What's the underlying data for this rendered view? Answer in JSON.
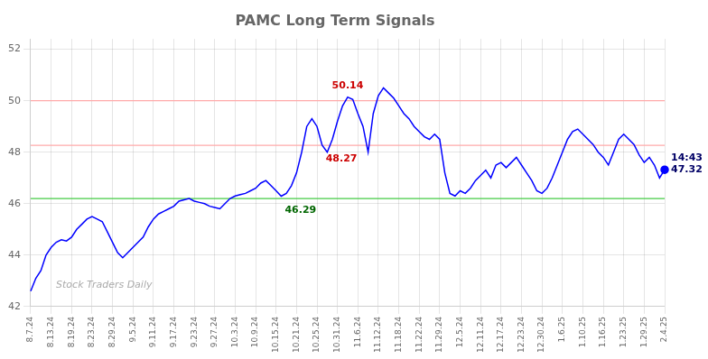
{
  "chart_data": {
    "type": "line",
    "title": "PAMC Long Term Signals",
    "categories": [
      "8.7.24",
      null,
      null,
      null,
      "8.13.24",
      null,
      null,
      null,
      "8.19.24",
      null,
      null,
      null,
      "8.23.24",
      null,
      null,
      null,
      "8.29.24",
      null,
      null,
      null,
      "9.5.24",
      null,
      null,
      null,
      "9.11.24",
      null,
      null,
      null,
      "9.17.24",
      null,
      null,
      null,
      "9.23.24",
      null,
      null,
      null,
      "9.27.24",
      null,
      null,
      null,
      "10.3.24",
      null,
      null,
      null,
      "10.9.24",
      null,
      null,
      null,
      "10.15.24",
      null,
      null,
      null,
      "10.21.24",
      null,
      null,
      null,
      "10.25.24",
      null,
      null,
      null,
      "10.31.24",
      null,
      null,
      null,
      "11.6.24",
      null,
      null,
      null,
      "11.12.24",
      null,
      null,
      null,
      "11.18.24",
      null,
      null,
      null,
      "11.22.24",
      null,
      null,
      null,
      "11.29.24",
      null,
      null,
      null,
      "12.5.24",
      null,
      null,
      null,
      "12.11.24",
      null,
      null,
      null,
      "12.17.24",
      null,
      null,
      null,
      "12.23.24",
      null,
      null,
      null,
      "12.30.24",
      null,
      null,
      null,
      "1.6.25",
      null,
      null,
      null,
      "1.10.25",
      null,
      null,
      null,
      "1.16.25",
      null,
      null,
      null,
      "1.23.25",
      null,
      null,
      null,
      "1.29.25",
      null,
      null,
      null,
      "2.4.25"
    ],
    "values": [
      42.6,
      43.1,
      43.4,
      44.0,
      44.3,
      44.5,
      44.6,
      44.55,
      44.7,
      45.0,
      45.2,
      45.4,
      45.5,
      45.4,
      45.3,
      44.9,
      44.5,
      44.1,
      43.9,
      44.1,
      44.3,
      44.5,
      44.7,
      45.1,
      45.4,
      45.6,
      45.7,
      45.8,
      45.9,
      46.1,
      46.15,
      46.2,
      46.1,
      46.05,
      46.0,
      45.9,
      45.85,
      45.8,
      46.0,
      46.2,
      46.3,
      46.35,
      46.4,
      46.5,
      46.6,
      46.8,
      46.9,
      46.7,
      46.5,
      46.29,
      46.4,
      46.7,
      47.2,
      48.0,
      49.0,
      49.3,
      49.0,
      48.27,
      48.0,
      48.5,
      49.2,
      49.8,
      50.14,
      50.05,
      49.5,
      49.0,
      48.0,
      49.5,
      50.2,
      50.5,
      50.3,
      50.1,
      49.8,
      49.5,
      49.3,
      49.0,
      48.8,
      48.6,
      48.5,
      48.7,
      48.5,
      47.2,
      46.4,
      46.3,
      46.5,
      46.4,
      46.6,
      46.9,
      47.1,
      47.3,
      47.0,
      47.5,
      47.6,
      47.4,
      47.6,
      47.8,
      47.5,
      47.2,
      46.9,
      46.5,
      46.4,
      46.6,
      47.0,
      47.5,
      48.0,
      48.5,
      48.8,
      48.9,
      48.7,
      48.5,
      48.3,
      48.0,
      47.8,
      47.5,
      48.0,
      48.5,
      48.7,
      48.5,
      48.3,
      47.9,
      47.6,
      47.8,
      47.5,
      47.0,
      47.32
    ],
    "color": "blue",
    "ylim": [
      42,
      52.4
    ],
    "yticks": [
      42,
      44,
      46,
      48,
      50,
      52
    ],
    "grid": true,
    "hlines": [
      {
        "value": 46.2,
        "color": "#44cc44"
      },
      {
        "value": 48.27,
        "color": "#ffaaaa"
      },
      {
        "value": 50.0,
        "color": "#ffaaaa"
      }
    ],
    "annotations": [
      {
        "text": "46.29",
        "value": 46.29,
        "color": "#006600"
      },
      {
        "text": "48.27",
        "value": 48.27,
        "color": "#cc0000"
      },
      {
        "text": "50.14",
        "value": 50.14,
        "color": "#cc0000"
      },
      {
        "text": [
          "14:43",
          "47.32"
        ],
        "value": 47.32,
        "color": "#000066"
      },
      {
        "text": "Stock Traders Daily",
        "color": "#aaaaaa"
      }
    ]
  }
}
